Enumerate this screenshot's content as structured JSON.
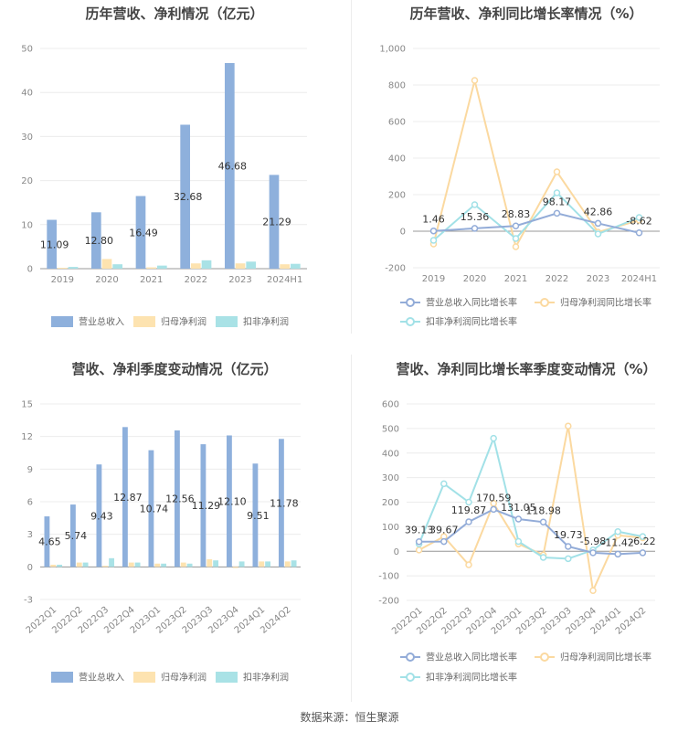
{
  "source": "数据来源：恒生聚源",
  "colors": {
    "blue": "#8eb0dc",
    "yellow": "#fde3b0",
    "cyan": "#a9e2e6",
    "blue_line": "#93acd8",
    "yellow_line": "#fbd9a0",
    "cyan_line": "#a2e1e7"
  },
  "chart_data": [
    {
      "type": "bar",
      "title": "历年营收、净利情况（亿元）",
      "categories": [
        "2019",
        "2020",
        "2021",
        "2022",
        "2023",
        "2024H1"
      ],
      "ylim": [
        0,
        50
      ],
      "yticks": [
        "0",
        "10",
        "20",
        "30",
        "40",
        "50"
      ],
      "grid": true,
      "legend_position": "bottom",
      "series": [
        {
          "name": "营业总收入",
          "values": [
            11.09,
            12.8,
            16.49,
            32.68,
            46.68,
            21.29
          ],
          "labels": [
            "11.09",
            "12.80",
            "16.49",
            "32.68",
            "46.68",
            "21.29"
          ]
        },
        {
          "name": "归母净利润",
          "values": [
            0.2,
            2.2,
            0.3,
            1.2,
            1.2,
            1.0
          ]
        },
        {
          "name": "扣非净利润",
          "values": [
            0.4,
            1.0,
            0.7,
            1.9,
            1.6,
            1.1
          ]
        }
      ]
    },
    {
      "type": "line",
      "title": "历年营收、净利同比增长率情况（%）",
      "categories": [
        "2019",
        "2020",
        "2021",
        "2022",
        "2023",
        "2024H1"
      ],
      "ylim": [
        -200,
        1000
      ],
      "yticks": [
        "-200",
        "0",
        "200",
        "400",
        "600",
        "800",
        "1,000"
      ],
      "grid": true,
      "legend_position": "bottom",
      "series": [
        {
          "name": "营业总收入同比增长率",
          "values": [
            1.46,
            15.36,
            28.83,
            98.17,
            42.86,
            -8.62
          ],
          "labels": [
            "1.46",
            "15.36",
            "28.83",
            "98.17",
            "42.86",
            "-8.62"
          ]
        },
        {
          "name": "归母净利润同比增长率",
          "values": [
            -70,
            825,
            -85,
            325,
            -5,
            60
          ]
        },
        {
          "name": "扣非净利润同比增长率",
          "values": [
            -50,
            145,
            -40,
            210,
            -15,
            75
          ]
        }
      ]
    },
    {
      "type": "bar",
      "title": "营收、净利季度变动情况（亿元）",
      "categories": [
        "2022Q1",
        "2022Q2",
        "2022Q3",
        "2022Q4",
        "2023Q1",
        "2023Q2",
        "2023Q3",
        "2023Q4",
        "2024Q1",
        "2024Q2"
      ],
      "ylim": [
        -3,
        15
      ],
      "yticks": [
        "-3",
        "0",
        "3",
        "6",
        "9",
        "12",
        "15"
      ],
      "grid": true,
      "legend_position": "bottom",
      "series": [
        {
          "name": "营业总收入",
          "values": [
            4.65,
            5.74,
            9.43,
            12.87,
            10.74,
            12.56,
            11.29,
            12.1,
            9.51,
            11.78
          ],
          "labels": [
            "4.65",
            "5.74",
            "9.43",
            "12.87",
            "10.74",
            "12.56",
            "11.29",
            "12.10",
            "9.51",
            "11.78"
          ]
        },
        {
          "name": "归母净利润",
          "values": [
            0.2,
            0.4,
            0.1,
            0.4,
            0.3,
            0.4,
            0.7,
            -0.1,
            0.5,
            0.5
          ]
        },
        {
          "name": "扣非净利润",
          "values": [
            0.2,
            0.4,
            0.8,
            0.4,
            0.3,
            0.3,
            0.6,
            0.5,
            0.5,
            0.6
          ]
        }
      ]
    },
    {
      "type": "line",
      "title": "营收、净利同比增长率季度变动情况（%）",
      "categories": [
        "2022Q1",
        "2022Q2",
        "2022Q3",
        "2022Q4",
        "2023Q1",
        "2023Q2",
        "2023Q3",
        "2023Q4",
        "2024Q1",
        "2024Q2"
      ],
      "ylim": [
        -200,
        600
      ],
      "yticks": [
        "-200",
        "-100",
        "0",
        "100",
        "200",
        "300",
        "400",
        "500",
        "600"
      ],
      "grid": true,
      "legend_position": "bottom",
      "series": [
        {
          "name": "营业总收入同比增长率",
          "values": [
            39.13,
            39.67,
            119.87,
            170.59,
            131.05,
            118.98,
            19.73,
            -5.98,
            -11.42,
            -6.22
          ],
          "labels": [
            "39.13",
            "39.67",
            "119.87",
            "170.59",
            "131.05",
            "118.98",
            "19.73",
            "-5.98",
            "-11.42",
            "-6.22"
          ]
        },
        {
          "name": "归母净利润同比增长率",
          "values": [
            5,
            60,
            -55,
            195,
            30,
            -15,
            510,
            -160,
            65,
            55
          ]
        },
        {
          "name": "扣非净利润同比增长率",
          "values": [
            30,
            275,
            200,
            460,
            40,
            -25,
            -30,
            5,
            80,
            60
          ]
        }
      ]
    }
  ]
}
